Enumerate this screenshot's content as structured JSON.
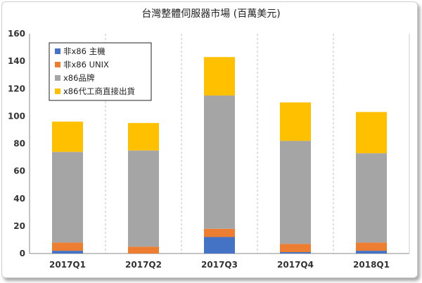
{
  "chart_data": {
    "type": "bar",
    "stacked": true,
    "title": "台灣整體伺服器市場 (百萬美元)",
    "categories": [
      "2017Q1",
      "2017Q2",
      "2017Q3",
      "2017Q4",
      "2018Q1"
    ],
    "series": [
      {
        "name": "非x86 主機",
        "color": "#4472c4",
        "values": [
          2,
          0,
          12,
          1,
          2
        ]
      },
      {
        "name": "非x86 UNIX",
        "color": "#ed7d31",
        "values": [
          6,
          5,
          6,
          6,
          6
        ]
      },
      {
        "name": "x86品牌",
        "color": "#a5a5a5",
        "values": [
          66,
          70,
          97,
          75,
          65
        ]
      },
      {
        "name": "x86代工商直接出貨",
        "color": "#ffc000",
        "values": [
          22,
          20,
          28,
          28,
          30
        ]
      }
    ],
    "ylim": [
      0,
      160
    ],
    "yticks": [
      0,
      20,
      40,
      60,
      80,
      100,
      120,
      140,
      160
    ],
    "grid": "vertical-between-categories",
    "legend_position": "top-left"
  }
}
